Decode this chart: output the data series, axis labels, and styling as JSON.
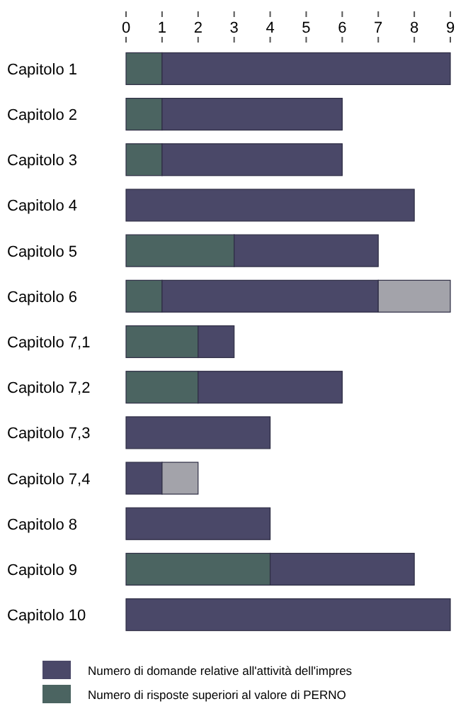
{
  "chart_data": {
    "type": "bar",
    "orientation": "horizontal",
    "stacked": true,
    "categories": [
      "Capitolo 1",
      "Capitolo 2",
      "Capitolo 3",
      "Capitolo 4",
      "Capitolo 5",
      "Capitolo 6",
      "Capitolo 7,1",
      "Capitolo 7,2",
      "Capitolo 7,3",
      "Capitolo 7,4",
      "Capitolo 8",
      "Capitolo 9",
      "Capitolo 10"
    ],
    "series": [
      {
        "name": "Numero di risposte superiori al valore di PERNO",
        "color": "#4b6461",
        "values": [
          1,
          1,
          1,
          0,
          3,
          1,
          2,
          2,
          0,
          0,
          0,
          4,
          0
        ]
      },
      {
        "name": "Numero di domande relative all'attività dell'impres",
        "color": "#4a4868",
        "values": [
          8,
          5,
          5,
          8,
          4,
          6,
          1,
          4,
          4,
          1,
          4,
          4,
          9
        ]
      },
      {
        "color": "#a3a3aa",
        "values": [
          0,
          0,
          0,
          0,
          0,
          2,
          0,
          0,
          0,
          1,
          0,
          0,
          0
        ]
      }
    ],
    "xlim": [
      0,
      9
    ],
    "xticks": [
      0,
      1,
      2,
      3,
      4,
      5,
      6,
      7,
      8,
      9
    ],
    "legend": "bottom",
    "grid": false
  }
}
